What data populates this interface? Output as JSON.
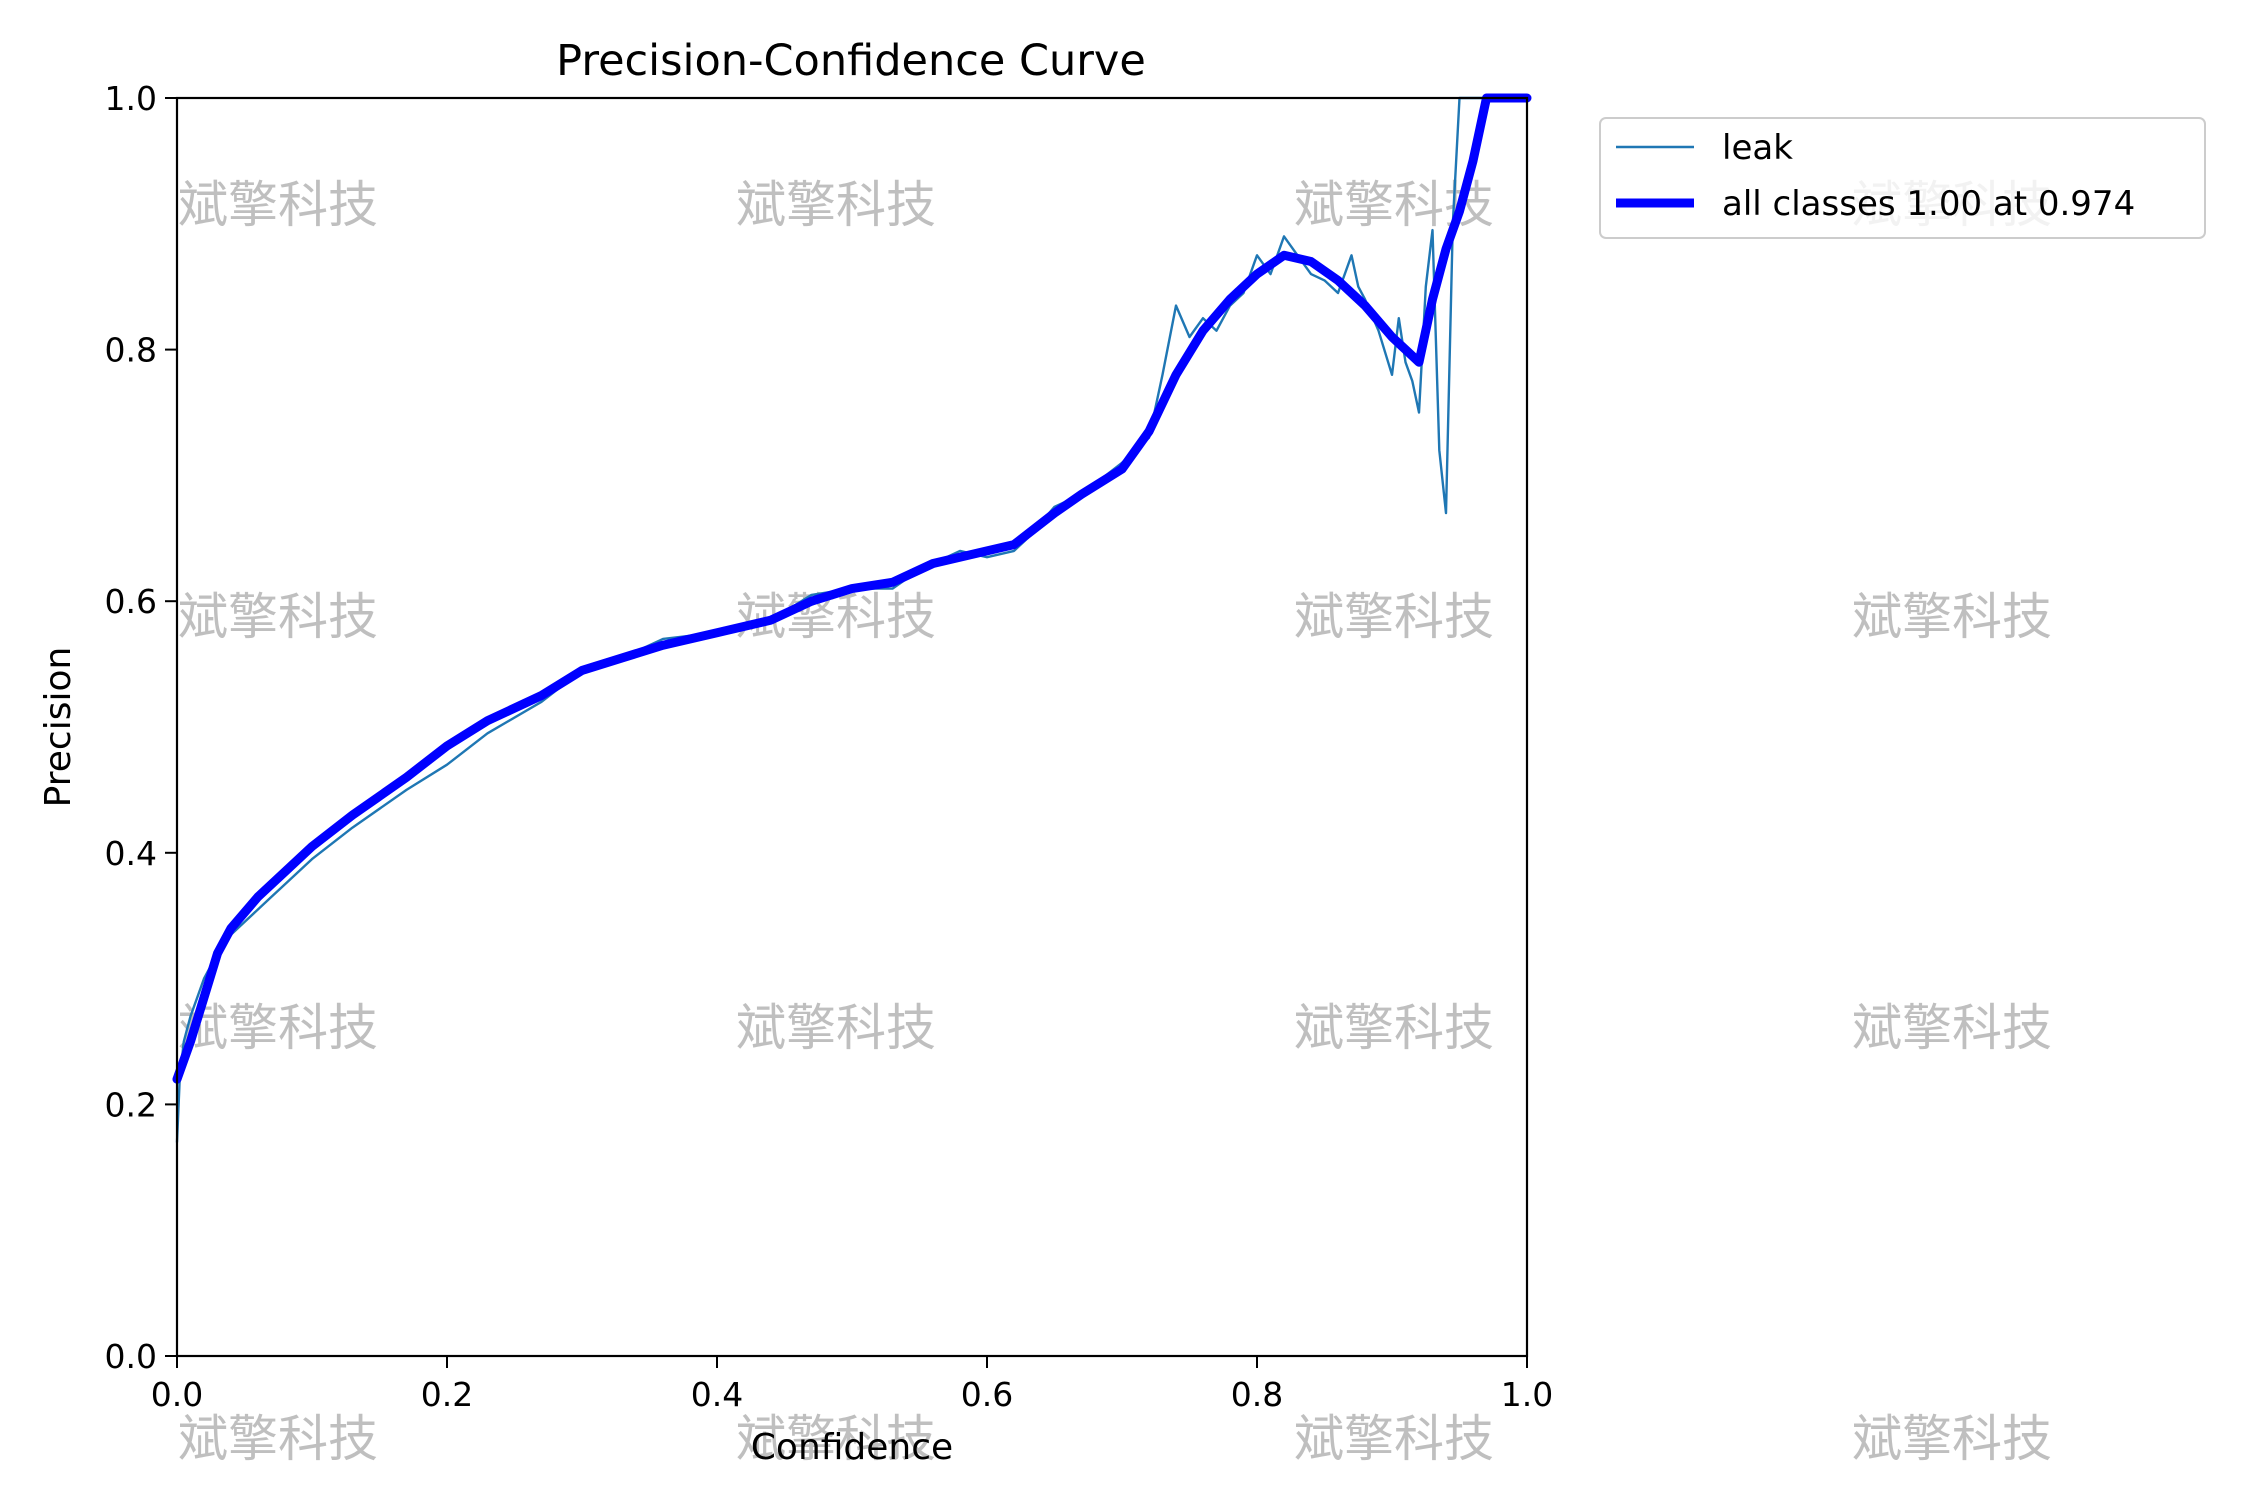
{
  "chart_data": {
    "type": "line",
    "title": "Precision-Confidence Curve",
    "xlabel": "Confidence",
    "ylabel": "Precision",
    "xlim": [
      0.0,
      1.0
    ],
    "ylim": [
      0.0,
      1.0
    ],
    "xticks": [
      "0.0",
      "0.2",
      "0.4",
      "0.6",
      "0.8",
      "1.0"
    ],
    "yticks": [
      "0.0",
      "0.2",
      "0.4",
      "0.6",
      "0.8",
      "1.0"
    ],
    "grid": false,
    "legend_position": "outside-top-right",
    "series": [
      {
        "name": "leak",
        "color": "#1f77b4",
        "x": [
          0.0,
          0.002,
          0.005,
          0.01,
          0.02,
          0.03,
          0.04,
          0.05,
          0.07,
          0.1,
          0.13,
          0.17,
          0.2,
          0.23,
          0.27,
          0.3,
          0.33,
          0.36,
          0.4,
          0.44,
          0.47,
          0.5,
          0.53,
          0.55,
          0.58,
          0.6,
          0.62,
          0.63,
          0.65,
          0.67,
          0.7,
          0.72,
          0.73,
          0.74,
          0.75,
          0.76,
          0.77,
          0.78,
          0.79,
          0.8,
          0.81,
          0.815,
          0.82,
          0.83,
          0.84,
          0.85,
          0.86,
          0.87,
          0.875,
          0.88,
          0.89,
          0.9,
          0.905,
          0.91,
          0.915,
          0.92,
          0.925,
          0.93,
          0.935,
          0.94,
          0.945,
          0.95,
          0.955,
          0.96,
          0.97,
          0.98,
          1.0
        ],
        "y": [
          0.17,
          0.22,
          0.25,
          0.27,
          0.3,
          0.32,
          0.335,
          0.345,
          0.365,
          0.395,
          0.42,
          0.45,
          0.47,
          0.495,
          0.52,
          0.545,
          0.555,
          0.57,
          0.575,
          0.585,
          0.605,
          0.61,
          0.61,
          0.625,
          0.64,
          0.635,
          0.64,
          0.65,
          0.675,
          0.685,
          0.71,
          0.73,
          0.78,
          0.835,
          0.81,
          0.825,
          0.815,
          0.835,
          0.845,
          0.875,
          0.86,
          0.875,
          0.89,
          0.875,
          0.86,
          0.855,
          0.845,
          0.875,
          0.85,
          0.84,
          0.815,
          0.78,
          0.825,
          0.79,
          0.775,
          0.75,
          0.85,
          0.895,
          0.72,
          0.67,
          0.9,
          1.0,
          1.0,
          1.0,
          1.0,
          1.0,
          1.0
        ]
      },
      {
        "name": "all classes 1.00 at 0.974",
        "color": "#0000ff",
        "x": [
          0.0,
          0.01,
          0.02,
          0.03,
          0.04,
          0.06,
          0.08,
          0.1,
          0.13,
          0.17,
          0.2,
          0.23,
          0.27,
          0.3,
          0.33,
          0.36,
          0.4,
          0.44,
          0.47,
          0.5,
          0.53,
          0.56,
          0.6,
          0.62,
          0.65,
          0.67,
          0.7,
          0.72,
          0.74,
          0.76,
          0.78,
          0.8,
          0.82,
          0.84,
          0.86,
          0.88,
          0.9,
          0.91,
          0.92,
          0.93,
          0.94,
          0.95,
          0.96,
          0.97,
          0.98,
          0.99,
          1.0
        ],
        "y": [
          0.22,
          0.25,
          0.285,
          0.32,
          0.34,
          0.365,
          0.385,
          0.405,
          0.43,
          0.46,
          0.485,
          0.505,
          0.525,
          0.545,
          0.555,
          0.565,
          0.575,
          0.585,
          0.6,
          0.61,
          0.615,
          0.63,
          0.64,
          0.645,
          0.67,
          0.685,
          0.705,
          0.735,
          0.78,
          0.815,
          0.84,
          0.86,
          0.875,
          0.87,
          0.855,
          0.835,
          0.81,
          0.8,
          0.79,
          0.84,
          0.88,
          0.91,
          0.95,
          1.0,
          1.0,
          1.0,
          1.0
        ]
      }
    ],
    "watermark_text": "斌擎科技"
  }
}
